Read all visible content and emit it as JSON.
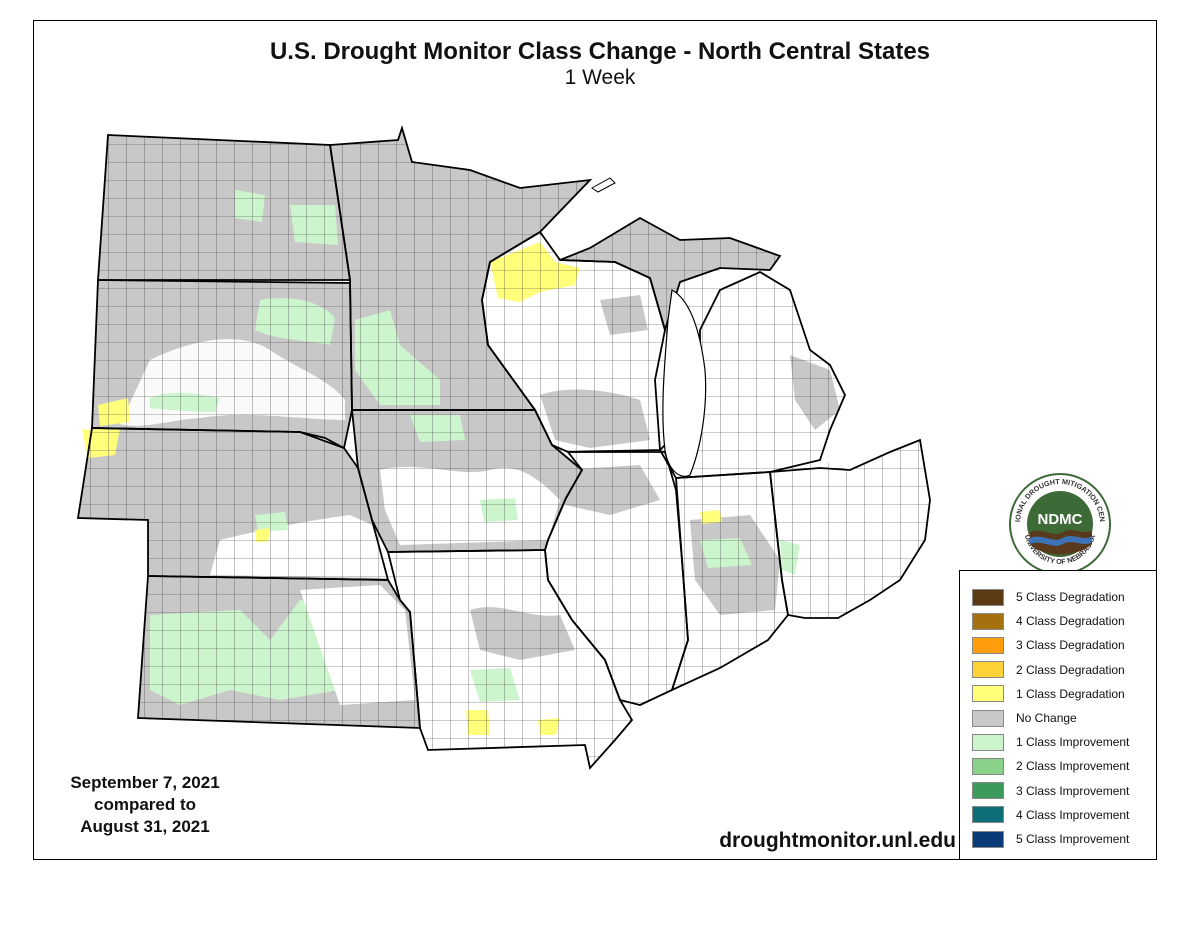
{
  "title": "U.S. Drought Monitor Class Change - North Central States",
  "subtitle": "1 Week",
  "date_line1": "September 7, 2021",
  "date_line2": "compared to",
  "date_line3": "August 31, 2021",
  "website": "droughtmonitor.unl.edu",
  "logo": {
    "text": "NDMC",
    "ring_top": "NATIONAL DROUGHT MITIGATION CENTER",
    "ring_bottom": "UNIVERSITY OF NEBRASKA",
    "green": "#3d6b37",
    "brown": "#5a3a1c",
    "blue": "#3c72b8"
  },
  "legend": [
    {
      "label": "5 Class Degradation",
      "color": "#5b3a14"
    },
    {
      "label": "4 Class Degradation",
      "color": "#a5700e"
    },
    {
      "label": "3 Class Degradation",
      "color": "#ff9e0a"
    },
    {
      "label": "2 Class Degradation",
      "color": "#ffd23a"
    },
    {
      "label": "1 Class Degradation",
      "color": "#ffff7a"
    },
    {
      "label": "No Change",
      "color": "#c8c8c8"
    },
    {
      "label": "1 Class Improvement",
      "color": "#cdf5cd"
    },
    {
      "label": "2 Class Improvement",
      "color": "#8ad28a"
    },
    {
      "label": "3 Class Improvement",
      "color": "#3c9a5c"
    },
    {
      "label": "4 Class Improvement",
      "color": "#0e6e78"
    },
    {
      "label": "5 Class Improvement",
      "color": "#0a3a78"
    }
  ],
  "map_colors": {
    "no_change": "#c8c8c8",
    "improvement_1": "#cdf5cd",
    "degradation_1": "#ffff7a",
    "white": "#ffffff",
    "border": "#000000"
  }
}
